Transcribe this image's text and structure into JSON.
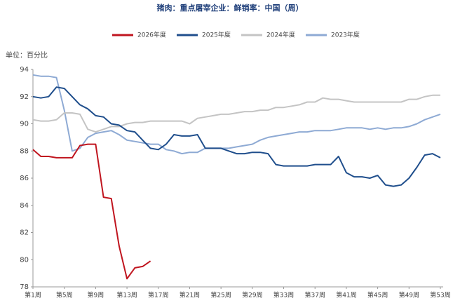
{
  "chart_data": {
    "type": "line",
    "title": "猪肉：重点屠宰企业：鲜销率：中国（周）",
    "y_axis_label": "单位：百分比",
    "categories": [
      "第1周",
      null,
      null,
      null,
      "第5周",
      null,
      null,
      null,
      "第9周",
      null,
      null,
      null,
      "第13周",
      null,
      null,
      null,
      "第17周",
      null,
      null,
      null,
      "第21周",
      null,
      null,
      null,
      "第25周",
      null,
      null,
      null,
      "第29周",
      null,
      null,
      null,
      "第33周",
      null,
      null,
      null,
      "第37周",
      null,
      null,
      null,
      "第41周",
      null,
      null,
      null,
      "第45周",
      null,
      null,
      null,
      "第49周",
      null,
      null,
      null,
      "第53周"
    ],
    "series": [
      {
        "name": "2026年度",
        "color": "#c0151f",
        "values": [
          88.1,
          87.6,
          87.6,
          87.5,
          87.5,
          87.5,
          88.4,
          88.5,
          88.5,
          84.6,
          84.5,
          81.0,
          78.6,
          79.4,
          79.5,
          79.9,
          null,
          null,
          null,
          null,
          null,
          null,
          null,
          null,
          null,
          null,
          null,
          null,
          null,
          null,
          null,
          null,
          null,
          null,
          null,
          null,
          null,
          null,
          null,
          null,
          null,
          null,
          null,
          null,
          null,
          null,
          null,
          null,
          null,
          null,
          null,
          null,
          null
        ]
      },
      {
        "name": "2025年度",
        "color": "#1f4e8c",
        "values": [
          92.0,
          91.9,
          92.0,
          92.7,
          92.6,
          92.0,
          91.4,
          91.1,
          90.6,
          90.5,
          90.0,
          89.9,
          89.5,
          89.4,
          88.8,
          88.2,
          88.1,
          88.5,
          89.2,
          89.1,
          89.1,
          89.2,
          88.2,
          88.2,
          88.2,
          88.0,
          87.8,
          87.8,
          87.9,
          87.9,
          87.8,
          87.0,
          86.9,
          86.9,
          86.9,
          86.9,
          87.0,
          87.0,
          87.0,
          87.6,
          86.4,
          86.1,
          86.1,
          86.0,
          86.2,
          85.5,
          85.4,
          85.5,
          86.0,
          86.8,
          87.7,
          87.8,
          87.5
        ]
      },
      {
        "name": "2024年度",
        "color": "#c4c4c4",
        "values": [
          90.3,
          90.2,
          90.2,
          90.3,
          90.8,
          90.8,
          90.7,
          89.6,
          89.4,
          89.6,
          89.8,
          89.8,
          90.0,
          90.1,
          90.1,
          90.2,
          90.2,
          90.2,
          90.2,
          90.2,
          90.0,
          90.4,
          90.5,
          90.6,
          90.7,
          90.7,
          90.8,
          90.9,
          90.9,
          91.0,
          91.0,
          91.2,
          91.2,
          91.3,
          91.4,
          91.6,
          91.6,
          91.9,
          91.8,
          91.8,
          91.7,
          91.6,
          91.6,
          91.6,
          91.6,
          91.6,
          91.6,
          91.6,
          91.8,
          91.8,
          92.0,
          92.1,
          92.1
        ]
      },
      {
        "name": "2023年度",
        "color": "#8eaad4",
        "values": [
          93.6,
          93.5,
          93.5,
          93.4,
          91.0,
          88.0,
          88.2,
          89.0,
          89.3,
          89.4,
          89.5,
          89.2,
          88.8,
          88.7,
          88.6,
          88.5,
          88.5,
          88.1,
          88.0,
          87.8,
          87.9,
          87.9,
          88.2,
          88.2,
          88.2,
          88.2,
          88.3,
          88.4,
          88.5,
          88.8,
          89.0,
          89.1,
          89.2,
          89.3,
          89.4,
          89.4,
          89.5,
          89.5,
          89.5,
          89.6,
          89.7,
          89.7,
          89.7,
          89.6,
          89.7,
          89.6,
          89.7,
          89.7,
          89.8,
          90.0,
          90.3,
          90.5,
          90.7
        ]
      }
    ],
    "ylim": [
      78,
      94
    ],
    "yticks": [
      78,
      80,
      82,
      84,
      86,
      88,
      90,
      92,
      94
    ],
    "grid": false,
    "legend": "top"
  }
}
